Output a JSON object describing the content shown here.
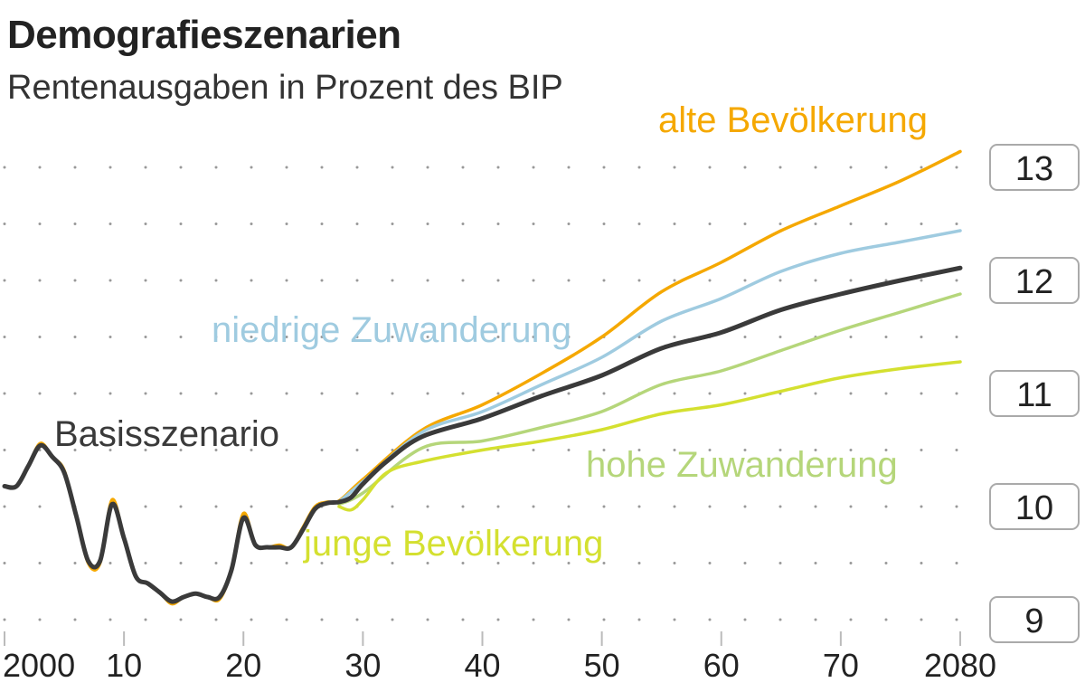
{
  "title": "Demografieszenarien",
  "subtitle": "Rentenausgaben in Prozent des BIP",
  "chart_data": {
    "type": "line",
    "title": "Demografieszenarien",
    "subtitle": "Rentenausgaben in Prozent des BIP",
    "xlim": [
      2000,
      2080
    ],
    "ylim": [
      9,
      13
    ],
    "grid": true,
    "x_ticks": [
      2000,
      2010,
      2020,
      2030,
      2040,
      2050,
      2060,
      2070,
      2080
    ],
    "x_tick_labels": [
      "2000",
      "10",
      "20",
      "30",
      "40",
      "50",
      "60",
      "70",
      "2080"
    ],
    "y_ticks": [
      9,
      10,
      11,
      12,
      13
    ],
    "y_tick_labels": [
      "9",
      "10",
      "11",
      "12",
      "13"
    ],
    "series": [
      {
        "name": "alte Bevölkerung",
        "color": "#f5a800",
        "x": [
          2000,
          2001,
          2002,
          2003,
          2004,
          2005,
          2006,
          2007,
          2008,
          2009,
          2010,
          2011,
          2012,
          2013,
          2014,
          2015,
          2016,
          2017,
          2018,
          2019,
          2020,
          2021,
          2022,
          2023,
          2024,
          2025,
          2026,
          2027,
          2028,
          2030,
          2035,
          2040,
          2045,
          2050,
          2055,
          2060,
          2065,
          2070,
          2075,
          2080
        ],
        "y": [
          10.18,
          10.18,
          10.36,
          10.56,
          10.44,
          10.32,
          9.92,
          9.5,
          9.5,
          10.06,
          9.72,
          9.38,
          9.32,
          9.24,
          9.14,
          9.2,
          9.23,
          9.2,
          9.18,
          9.44,
          9.94,
          9.66,
          9.64,
          9.66,
          9.64,
          9.82,
          10.0,
          10.04,
          10.05,
          10.24,
          10.68,
          10.9,
          11.18,
          11.5,
          11.9,
          12.16,
          12.44,
          12.66,
          12.88,
          13.14
        ]
      },
      {
        "name": "niedrige Zuwanderung",
        "color": "#9fcbe0",
        "x": [
          2028,
          2030,
          2035,
          2040,
          2045,
          2050,
          2055,
          2060,
          2065,
          2070,
          2075,
          2080
        ],
        "y": [
          10.04,
          10.22,
          10.66,
          10.84,
          11.08,
          11.32,
          11.64,
          11.84,
          12.08,
          12.24,
          12.34,
          12.44
        ]
      },
      {
        "name": "hohe Zuwanderung",
        "color": "#b5d67a",
        "x": [
          2028,
          2030,
          2035,
          2040,
          2045,
          2050,
          2055,
          2060,
          2065,
          2070,
          2075,
          2080
        ],
        "y": [
          10.02,
          10.12,
          10.52,
          10.58,
          10.7,
          10.84,
          11.08,
          11.2,
          11.38,
          11.56,
          11.72,
          11.88
        ]
      },
      {
        "name": "junge Bevölkerung",
        "color": "#d4e030",
        "x": [
          2028,
          2029,
          2030,
          2032,
          2035,
          2040,
          2045,
          2050,
          2055,
          2060,
          2065,
          2070,
          2075,
          2080
        ],
        "y": [
          10.0,
          9.97,
          10.06,
          10.3,
          10.4,
          10.5,
          10.58,
          10.68,
          10.82,
          10.9,
          11.02,
          11.14,
          11.22,
          11.28
        ]
      },
      {
        "name": "Basisszenario",
        "color": "#3a3a3a",
        "x": [
          2000,
          2001,
          2002,
          2003,
          2004,
          2005,
          2006,
          2007,
          2008,
          2009,
          2010,
          2011,
          2012,
          2013,
          2014,
          2015,
          2016,
          2017,
          2018,
          2019,
          2020,
          2021,
          2022,
          2023,
          2024,
          2025,
          2026,
          2027,
          2028,
          2029,
          2030,
          2032,
          2035,
          2040,
          2045,
          2050,
          2055,
          2060,
          2065,
          2070,
          2075,
          2080
        ],
        "y": [
          10.18,
          10.18,
          10.36,
          10.54,
          10.44,
          10.3,
          9.92,
          9.52,
          9.52,
          10.02,
          9.72,
          9.38,
          9.32,
          9.24,
          9.16,
          9.2,
          9.23,
          9.2,
          9.2,
          9.44,
          9.9,
          9.66,
          9.64,
          9.64,
          9.64,
          9.8,
          9.98,
          10.03,
          10.04,
          10.08,
          10.2,
          10.4,
          10.62,
          10.78,
          10.98,
          11.16,
          11.4,
          11.54,
          11.74,
          11.88,
          12.0,
          12.11
        ]
      }
    ]
  }
}
